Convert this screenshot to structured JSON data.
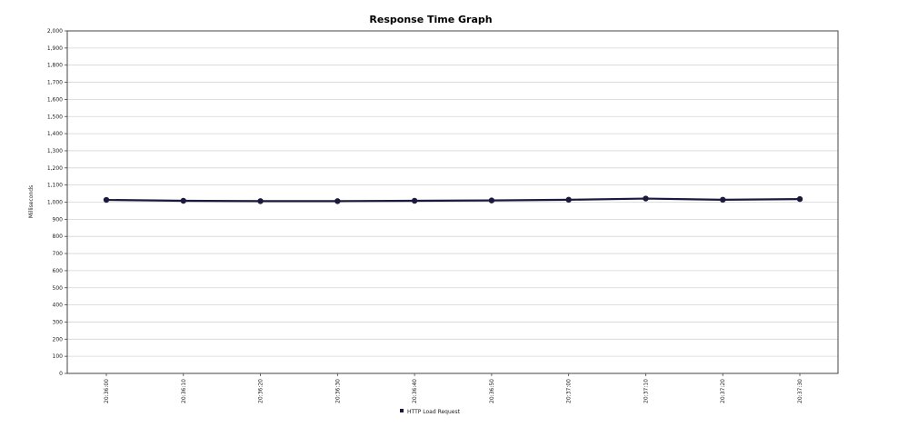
{
  "chart_data": {
    "type": "line",
    "title": "Response Time Graph",
    "xlabel": "",
    "ylabel": "Milliseconds",
    "categories": [
      "20:36:00",
      "20:36:10",
      "20:36:20",
      "20:36:30",
      "20:36:40",
      "20:36:50",
      "20:37:00",
      "20:37:10",
      "20:37:20",
      "20:37:30"
    ],
    "series": [
      {
        "name": "HTTP Load Request",
        "color": "#1a1a3c",
        "values": [
          1013,
          1008,
          1006,
          1006,
          1008,
          1010,
          1014,
          1021,
          1014,
          1018
        ]
      }
    ],
    "ylim": [
      0,
      2000
    ],
    "yticks": [
      "0",
      "100",
      "200",
      "300",
      "400",
      "500",
      "600",
      "700",
      "800",
      "900",
      "1,000",
      "1,100",
      "1,200",
      "1,300",
      "1,400",
      "1,500",
      "1,600",
      "1,700",
      "1,800",
      "1,900",
      "2,000"
    ],
    "grid": "horizontal",
    "legend": "bottom-center"
  }
}
